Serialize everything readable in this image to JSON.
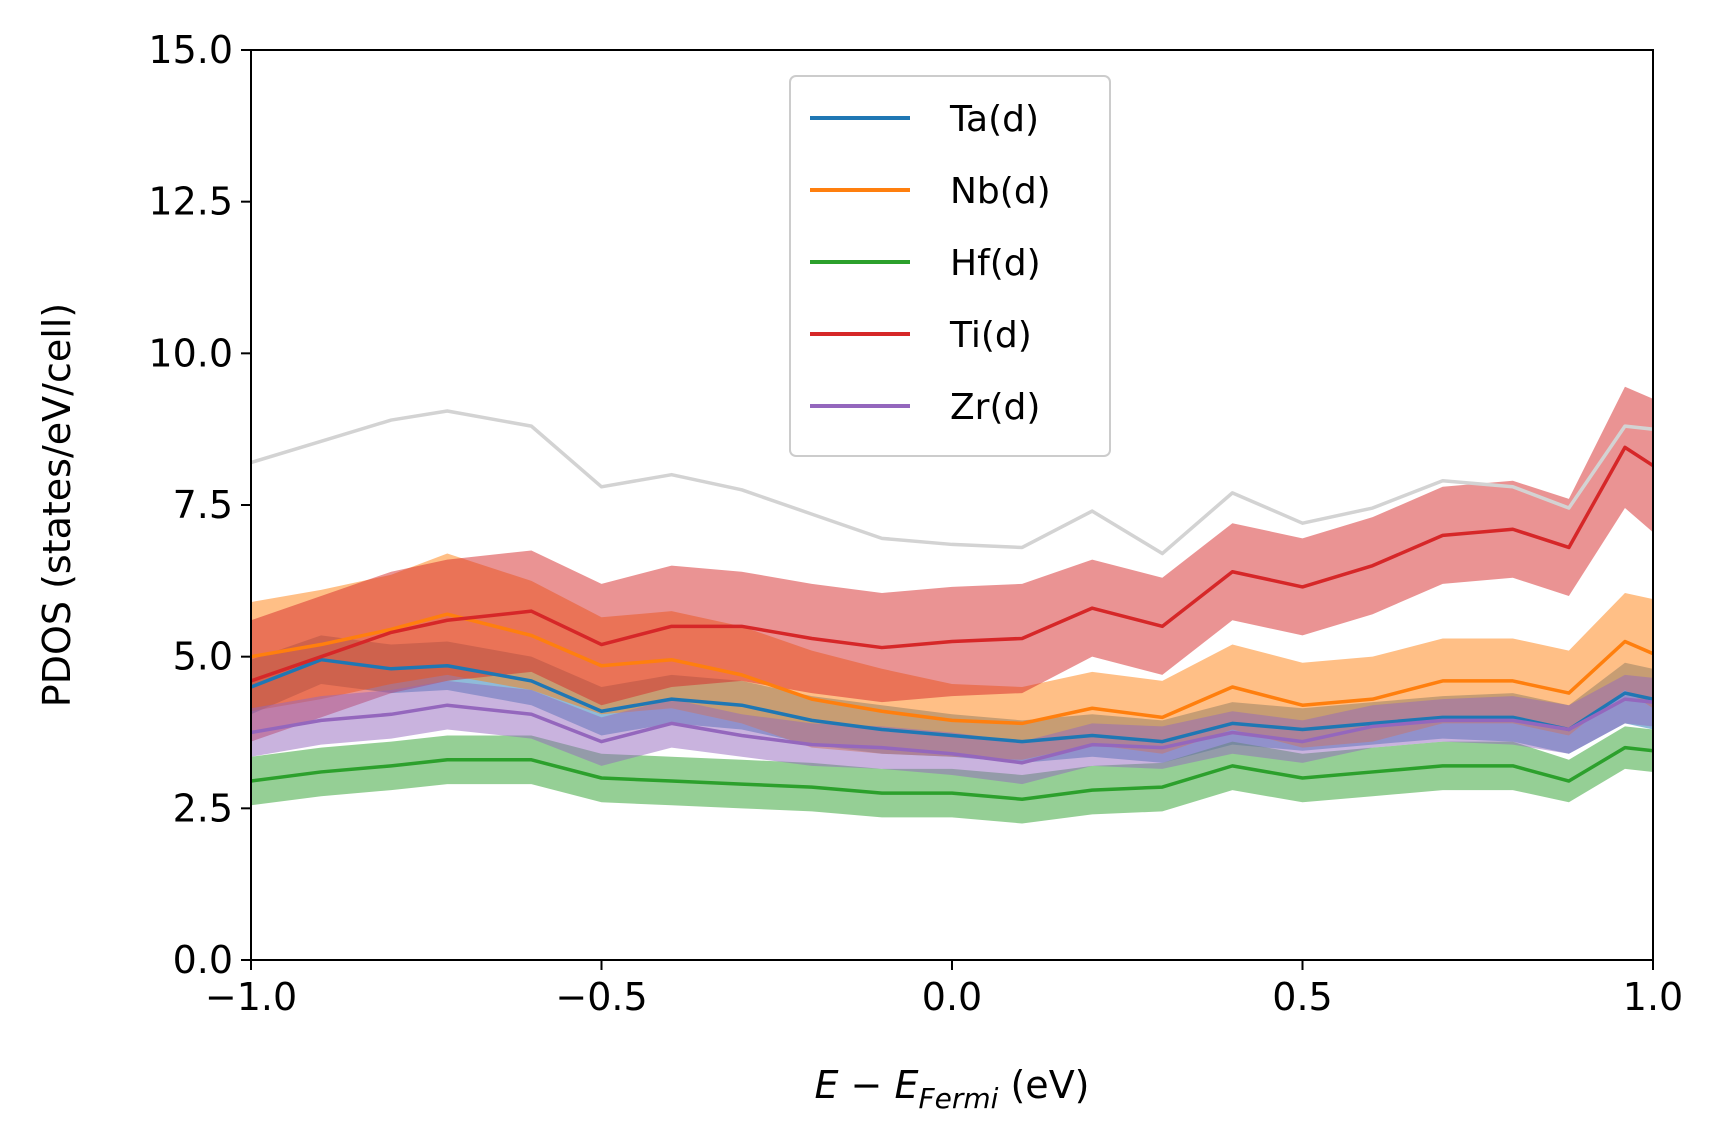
{
  "chart_data": {
    "type": "line",
    "title": "",
    "xlabel": {
      "main": "E − E",
      "subscript": "Fermi",
      "unit": " (eV)"
    },
    "ylabel": "PDOS (states/eV/cell)",
    "xlim": [
      -1.0,
      1.0
    ],
    "ylim": [
      0.0,
      15.0
    ],
    "xticks": [
      -1.0,
      -0.5,
      0.0,
      0.5,
      1.0
    ],
    "xtick_labels": [
      "−1.0",
      "−0.5",
      "0.0",
      "0.5",
      "1.0"
    ],
    "yticks": [
      0.0,
      2.5,
      5.0,
      7.5,
      10.0,
      12.5,
      15.0
    ],
    "ytick_labels": [
      "0.0",
      "2.5",
      "5.0",
      "7.5",
      "10.0",
      "12.5",
      "15.0"
    ],
    "grid": false,
    "legend_position": "top-center",
    "x": [
      -1.0,
      -0.9,
      -0.8,
      -0.72,
      -0.6,
      -0.5,
      -0.4,
      -0.3,
      -0.2,
      -0.1,
      0.0,
      0.1,
      0.2,
      0.3,
      0.4,
      0.5,
      0.6,
      0.7,
      0.8,
      0.88,
      0.96,
      1.0
    ],
    "series": [
      {
        "name": "Ta(d)",
        "color": "#1f77b4",
        "values": [
          4.5,
          4.95,
          4.8,
          4.85,
          4.6,
          4.1,
          4.3,
          4.2,
          3.95,
          3.8,
          3.7,
          3.6,
          3.7,
          3.6,
          3.9,
          3.8,
          3.9,
          4.0,
          4.0,
          3.8,
          4.4,
          4.3
        ],
        "spread": [
          0.45,
          0.4,
          0.4,
          0.4,
          0.4,
          0.4,
          0.4,
          0.4,
          0.4,
          0.4,
          0.35,
          0.35,
          0.35,
          0.35,
          0.35,
          0.35,
          0.35,
          0.35,
          0.4,
          0.4,
          0.5,
          0.5
        ]
      },
      {
        "name": "Nb(d)",
        "color": "#ff7f0e",
        "values": [
          5.0,
          5.2,
          5.45,
          5.7,
          5.35,
          4.85,
          4.95,
          4.7,
          4.3,
          4.1,
          3.95,
          3.9,
          4.15,
          4.0,
          4.5,
          4.2,
          4.3,
          4.6,
          4.6,
          4.4,
          5.25,
          5.05
        ],
        "spread": [
          0.9,
          0.9,
          0.9,
          1.0,
          0.9,
          0.8,
          0.8,
          0.8,
          0.8,
          0.7,
          0.6,
          0.6,
          0.6,
          0.6,
          0.7,
          0.7,
          0.7,
          0.7,
          0.7,
          0.7,
          0.8,
          0.9
        ]
      },
      {
        "name": "Hf(d)",
        "color": "#2ca02c",
        "values": [
          2.95,
          3.1,
          3.2,
          3.3,
          3.3,
          3.0,
          2.95,
          2.9,
          2.85,
          2.75,
          2.75,
          2.65,
          2.8,
          2.85,
          3.2,
          3.0,
          3.1,
          3.2,
          3.2,
          2.95,
          3.5,
          3.45
        ],
        "spread": [
          0.4,
          0.4,
          0.4,
          0.4,
          0.4,
          0.4,
          0.4,
          0.4,
          0.4,
          0.4,
          0.4,
          0.4,
          0.4,
          0.4,
          0.4,
          0.4,
          0.4,
          0.4,
          0.4,
          0.35,
          0.35,
          0.35
        ]
      },
      {
        "name": "Ti(d)",
        "color": "#d62728",
        "values": [
          4.6,
          5.0,
          5.4,
          5.6,
          5.75,
          5.2,
          5.5,
          5.5,
          5.3,
          5.15,
          5.25,
          5.3,
          5.8,
          5.5,
          6.4,
          6.15,
          6.5,
          7.0,
          7.1,
          6.8,
          8.45,
          8.15
        ],
        "spread": [
          1.0,
          1.0,
          1.0,
          1.0,
          1.0,
          1.0,
          1.0,
          0.9,
          0.9,
          0.9,
          0.9,
          0.9,
          0.8,
          0.8,
          0.8,
          0.8,
          0.8,
          0.8,
          0.8,
          0.8,
          1.0,
          1.1
        ]
      },
      {
        "name": "Zr(d)",
        "color": "#9467bd",
        "values": [
          3.75,
          3.95,
          4.05,
          4.2,
          4.05,
          3.6,
          3.9,
          3.7,
          3.55,
          3.5,
          3.4,
          3.25,
          3.55,
          3.5,
          3.75,
          3.6,
          3.85,
          3.95,
          3.95,
          3.8,
          4.3,
          4.25
        ],
        "spread": [
          0.4,
          0.4,
          0.4,
          0.4,
          0.4,
          0.4,
          0.4,
          0.35,
          0.35,
          0.35,
          0.35,
          0.35,
          0.35,
          0.35,
          0.35,
          0.35,
          0.35,
          0.35,
          0.4,
          0.4,
          0.4,
          0.4
        ]
      },
      {
        "name": "",
        "color": "#d3d3d3",
        "legend": false,
        "values": [
          8.2,
          8.55,
          8.9,
          9.05,
          8.8,
          7.8,
          8.0,
          7.75,
          7.35,
          6.95,
          6.85,
          6.8,
          7.4,
          6.7,
          7.7,
          7.2,
          7.45,
          7.9,
          7.8,
          7.45,
          8.8,
          8.75
        ],
        "spread": null
      }
    ]
  }
}
